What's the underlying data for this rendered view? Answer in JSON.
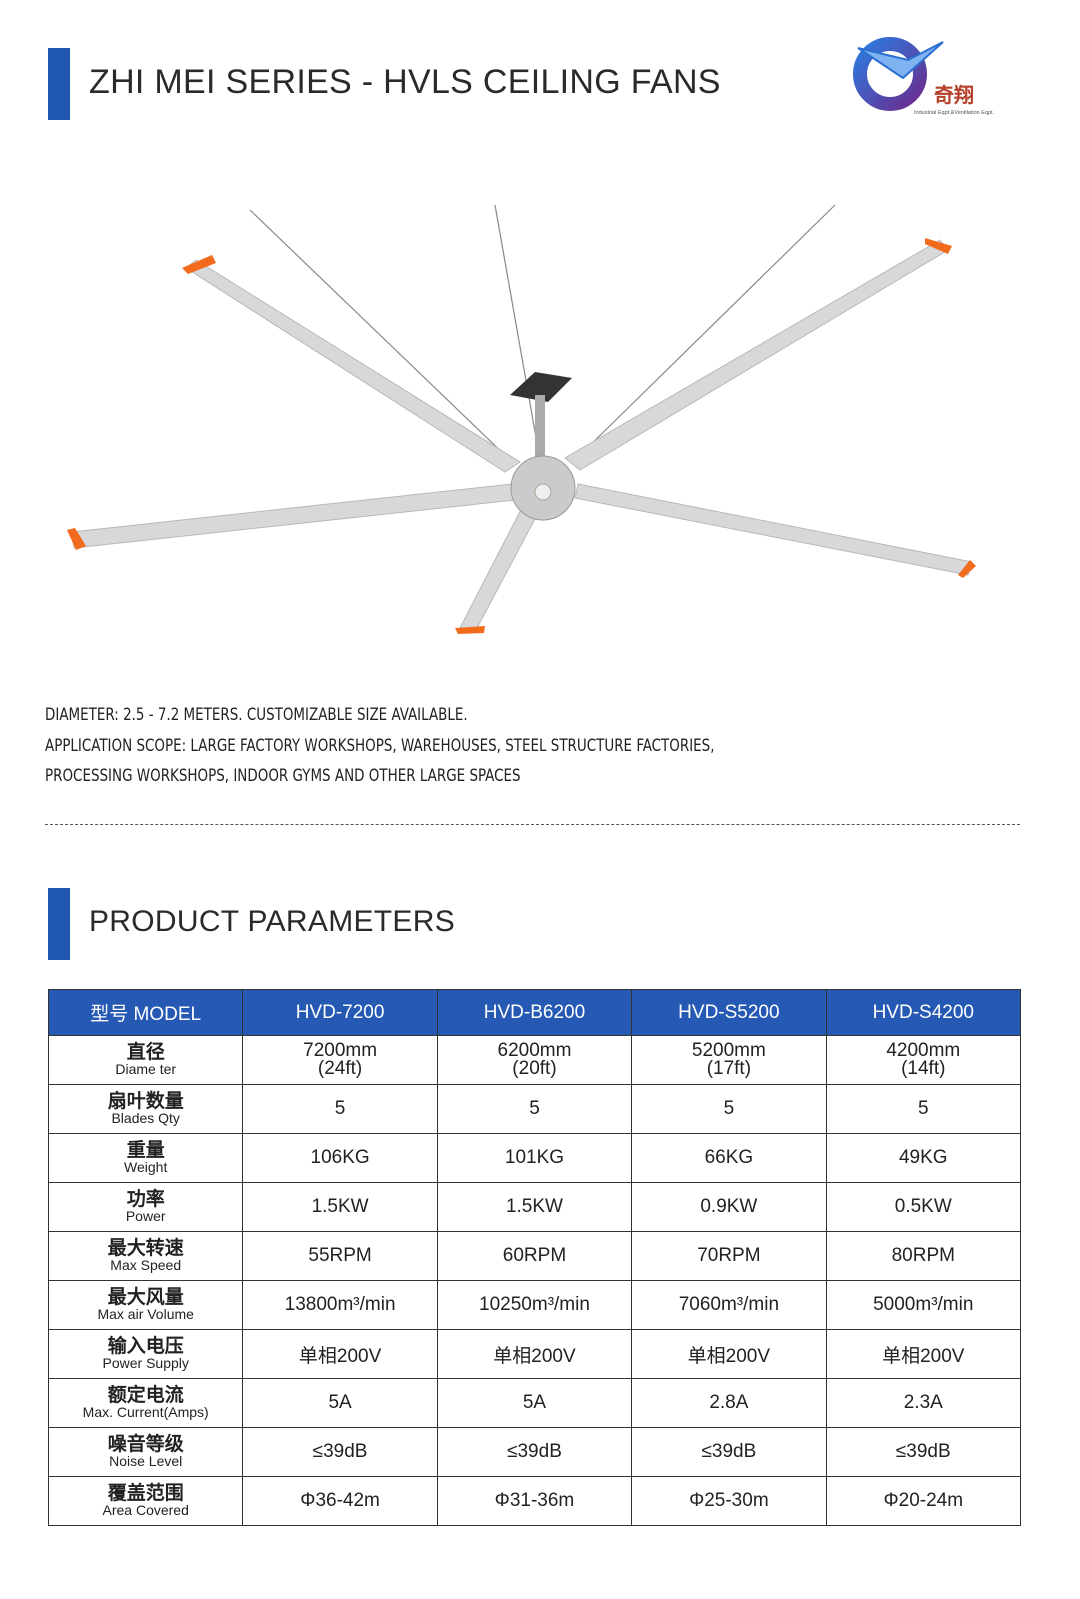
{
  "header": {
    "title": "ZHI MEI SERIES - HVLS CEILING FANS",
    "logo_text": "奇翔",
    "logo_subtitle": "Industrial Eqpt.&Ventilation Eqpt."
  },
  "description": [
    "DIAMETER: 2.5 - 7.2 METERS. CUSTOMIZABLE SIZE AVAILABLE.",
    "APPLICATION SCOPE: LARGE FACTORY WORKSHOPS, WAREHOUSES, STEEL STRUCTURE FACTORIES,",
    "PROCESSING WORKSHOPS, INDOOR GYMS AND OTHER LARGE SPACES"
  ],
  "params": {
    "title": "PRODUCT PARAMETERS",
    "header": [
      "型号 MODEL",
      "HVD-7200",
      "HVD-B6200",
      "HVD-S5200",
      "HVD-S4200"
    ],
    "rows": [
      {
        "cn": "直径",
        "en": "Diame ter",
        "values": [
          [
            "7200mm",
            "(24ft)"
          ],
          [
            "6200mm",
            "(20ft)"
          ],
          [
            "5200mm",
            "(17ft)"
          ],
          [
            "4200mm",
            "(14ft)"
          ]
        ]
      },
      {
        "cn": "扇叶数量",
        "en": "Blades Qty",
        "values": [
          "5",
          "5",
          "5",
          "5"
        ]
      },
      {
        "cn": "重量",
        "en": "Weight",
        "values": [
          "106KG",
          "101KG",
          "66KG",
          "49KG"
        ]
      },
      {
        "cn": "功率",
        "en": "Power",
        "values": [
          "1.5KW",
          "1.5KW",
          "0.9KW",
          "0.5KW"
        ]
      },
      {
        "cn": "最大转速",
        "en": "Max Speed",
        "values": [
          "55RPM",
          "60RPM",
          "70RPM",
          "80RPM"
        ]
      },
      {
        "cn": "最大风量",
        "en": "Max air Volume",
        "values": [
          "13800m³/min",
          "10250m³/min",
          "7060m³/min",
          "5000m³/min"
        ]
      },
      {
        "cn": "输入电压",
        "en": "Power Supply",
        "values": [
          "单相200V",
          "单相200V",
          "单相200V",
          "单相200V"
        ]
      },
      {
        "cn": "额定电流",
        "en": "Max. Current(Amps)",
        "values": [
          "5A",
          "5A",
          "2.8A",
          "2.3A"
        ]
      },
      {
        "cn": "噪音等级",
        "en": "Noise Level",
        "values": [
          "≤39dB",
          "≤39dB",
          "≤39dB",
          "≤39dB"
        ]
      },
      {
        "cn": "覆盖范围",
        "en": "Area Covered",
        "values": [
          "Φ36-42m",
          "Φ31-36m",
          "Φ25-30m",
          "Φ20-24m"
        ]
      }
    ]
  },
  "colors": {
    "accent": "#1f56b0",
    "header_bg": "#2559b3",
    "blade_tip": "#f26a1b"
  }
}
